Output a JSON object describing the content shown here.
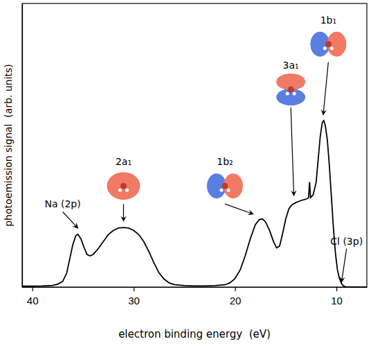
{
  "chart_data": {
    "type": "line",
    "xlabel": "electron binding energy  (eV)",
    "ylabel": "photoemission signal  (arb. units)",
    "xlim": [
      41,
      7
    ],
    "xticks": [
      40,
      30,
      20,
      10
    ],
    "ylim": [
      0,
      100
    ],
    "tick_labels": "x",
    "grid": false,
    "x": [
      41,
      40,
      39,
      38,
      37.5,
      37,
      36.6,
      36.3,
      36,
      35.7,
      35.5,
      35.2,
      34.9,
      34.6,
      34.3,
      34,
      33.5,
      33,
      32.5,
      32,
      31.5,
      31,
      30.5,
      30,
      29.5,
      29,
      28.5,
      28,
      27.5,
      27,
      26.5,
      26,
      25,
      24,
      23,
      22,
      21,
      20.5,
      20,
      19.5,
      19,
      18.5,
      18,
      17.6,
      17.3,
      17,
      16.6,
      16.2,
      15.9,
      15.6,
      15.3,
      15,
      14.7,
      14.4,
      14,
      13.5,
      13,
      12.75,
      12.65,
      12.55,
      12.3,
      12,
      11.8,
      11.6,
      11.4,
      11.25,
      11.1,
      10.9,
      10.7,
      10.5,
      10.3,
      10.1,
      9.9,
      9.7,
      9.5,
      9.3,
      9,
      8,
      7
    ],
    "series": [
      {
        "color": "#000000",
        "values": [
          0.3,
          0.3,
          0.4,
          0.6,
          1,
          2,
          5,
          10,
          15,
          18.2,
          18.6,
          17,
          14,
          11.5,
          11,
          11.5,
          13.5,
          16,
          18.5,
          20,
          20.8,
          21,
          20.8,
          20,
          18.5,
          16,
          12.5,
          8.5,
          5,
          2.8,
          1.5,
          0.9,
          0.5,
          0.4,
          0.4,
          0.5,
          0.8,
          1.5,
          3,
          6,
          11,
          17,
          22,
          23.8,
          24,
          23,
          20,
          16,
          13.8,
          14.5,
          19,
          24,
          27.5,
          29,
          29.8,
          30.5,
          31,
          31.5,
          37,
          31.5,
          32.5,
          37,
          45,
          53,
          58,
          58.7,
          57,
          52,
          43,
          32,
          21,
          12,
          6,
          3,
          1.2,
          0.4,
          0,
          0,
          0
        ]
      }
    ],
    "annotations": [
      {
        "text": "Na (2p)",
        "x": 35.5,
        "y": 20,
        "text_x": 37,
        "text_y": 28
      },
      {
        "text": "2a₁",
        "x": 31,
        "y": 22.5,
        "text_x": 31,
        "text_y": 43
      },
      {
        "text": "1b₂",
        "x": 18.2,
        "y": 25,
        "text_x": 21,
        "text_y": 43
      },
      {
        "text": "3a₁",
        "x": 14.2,
        "y": 31.5,
        "text_x": 14.5,
        "text_y": 77
      },
      {
        "text": "1b₁",
        "x": 11.3,
        "y": 60,
        "text_x": 10.8,
        "text_y": 93
      },
      {
        "text": "Cl (3p)",
        "x": 9.5,
        "y": 1,
        "text_x": 9,
        "text_y": 15
      }
    ]
  }
}
